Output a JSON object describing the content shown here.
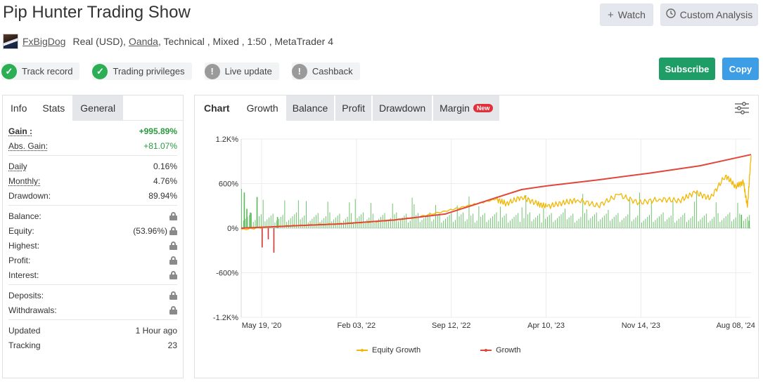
{
  "title": "Pip Hunter Trading Show",
  "top_buttons": {
    "watch": "Watch",
    "custom_analysis": "Custom Analysis"
  },
  "subline": {
    "user": "FxBigDog",
    "account": "Real (USD),",
    "broker": "Oanda",
    "details": ", Technical , Mixed , 1:50 , MetaTrader 4"
  },
  "badges": [
    {
      "label": "Track record",
      "status": "ok"
    },
    {
      "label": "Trading privileges",
      "status": "ok"
    },
    {
      "label": "Live update",
      "status": "no"
    },
    {
      "label": "Cashback",
      "status": "no"
    }
  ],
  "actions": {
    "subscribe": "Subscribe",
    "copy": "Copy"
  },
  "left_tabs": [
    "Info",
    "Stats",
    "General"
  ],
  "stats": {
    "gain": {
      "label": "Gain :",
      "value": "+995.89%"
    },
    "abs_gain": {
      "label": "Abs. Gain:",
      "value": "+81.07%"
    },
    "daily": {
      "label": "Daily",
      "value": "0.16%"
    },
    "monthly": {
      "label": "Monthly:",
      "value": "4.76%"
    },
    "drawdown": {
      "label": "Drawdown:",
      "value": "89.94%"
    },
    "balance": {
      "label": "Balance:"
    },
    "equity": {
      "label": "Equity:",
      "value": "(53.96%)"
    },
    "highest": {
      "label": "Highest:"
    },
    "profit": {
      "label": "Profit:"
    },
    "interest": {
      "label": "Interest:"
    },
    "deposits": {
      "label": "Deposits:"
    },
    "withdrawals": {
      "label": "Withdrawals:"
    },
    "updated": {
      "label": "Updated",
      "value": "1 Hour ago"
    },
    "tracking": {
      "label": "Tracking",
      "value": "23"
    }
  },
  "chart_tabs": {
    "label": "Chart",
    "items": [
      "Growth",
      "Balance",
      "Profit",
      "Drawdown",
      "Margin"
    ],
    "new_badge": "New"
  },
  "chart_data": {
    "type": "line",
    "y_ticks": [
      "1.2K%",
      "600%",
      "0%",
      "-600%",
      "-1.2K%"
    ],
    "x_ticks": [
      "May 19, '20",
      "Feb 03, '22",
      "Sep 12, '22",
      "Apr 10, '23",
      "Nov 14, '23",
      "Aug 08, '24"
    ],
    "ylim": [
      -1200,
      1200
    ],
    "grid": true,
    "legend_position": "bottom",
    "series": [
      {
        "name": "Equity Growth",
        "color": "#f2b705",
        "x": [
          0,
          0.06,
          0.12,
          0.2,
          0.27,
          0.34,
          0.4,
          0.45,
          0.5,
          0.52,
          0.55,
          0.58,
          0.6,
          0.63,
          0.66,
          0.7,
          0.74,
          0.78,
          0.82,
          0.86,
          0.89,
          0.92,
          0.95,
          0.97,
          0.985,
          0.993,
          1.0
        ],
        "values": [
          -20,
          20,
          40,
          60,
          90,
          140,
          230,
          310,
          390,
          330,
          420,
          330,
          290,
          340,
          380,
          300,
          450,
          340,
          390,
          370,
          480,
          400,
          710,
          560,
          620,
          280,
          980
        ]
      },
      {
        "name": "Growth",
        "color": "#e0473a",
        "x": [
          0,
          0.1,
          0.2,
          0.3,
          0.4,
          0.45,
          0.5,
          0.55,
          0.6,
          0.7,
          0.8,
          0.9,
          1.0
        ],
        "values": [
          0,
          30,
          60,
          110,
          190,
          300,
          410,
          520,
          570,
          650,
          740,
          840,
          990
        ]
      }
    ],
    "bars": {
      "color_pos": "#57b857",
      "color_neg": "#d33535",
      "notable": [
        {
          "x": 0.005,
          "value": 480
        },
        {
          "x": 0.01,
          "value": 260
        },
        {
          "x": 0.017,
          "value": 210
        },
        {
          "x": 0.03,
          "value": 420
        },
        {
          "x": 0.04,
          "value": -260
        },
        {
          "x": 0.052,
          "value": -150
        },
        {
          "x": 0.063,
          "value": -330
        },
        {
          "x": 0.07,
          "value": 150
        },
        {
          "x": 0.98,
          "value": 180
        },
        {
          "x": 0.995,
          "value": 100
        }
      ]
    }
  }
}
